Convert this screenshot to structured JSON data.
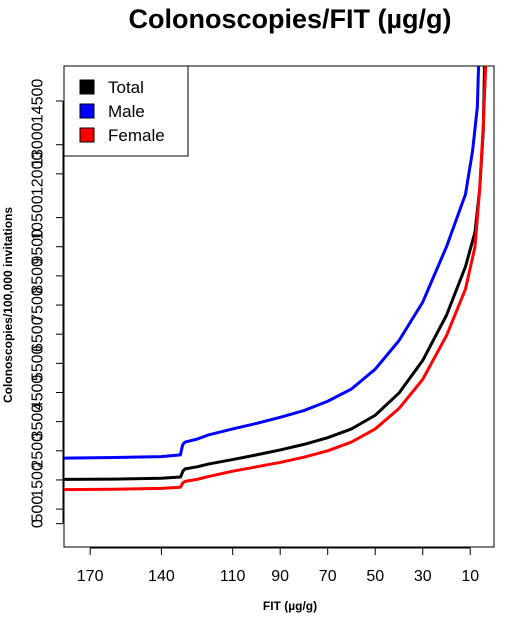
{
  "chart_data": {
    "type": "line",
    "title": "Colonoscopies/FIT (µg/g)",
    "xlabel": "FIT (µg/g)",
    "ylabel": "Colonoscopies/100,000 invitations",
    "xlim": [
      181,
      0
    ],
    "ylim": [
      -800,
      15700
    ],
    "x_ticks": [
      170,
      140,
      110,
      90,
      70,
      50,
      30,
      10
    ],
    "x_tick_labels": [
      "170",
      "140",
      "110",
      "90",
      "70",
      "50",
      "30",
      "10"
    ],
    "y_ticks": [
      0,
      500,
      1500,
      2500,
      3500,
      4500,
      5500,
      6500,
      7500,
      8500,
      9500,
      10500,
      12000,
      13000,
      14500
    ],
    "y_tick_labels": [
      "0",
      "500",
      "1500",
      "2500",
      "3500",
      "4500",
      "5500",
      "6500",
      "7500",
      "8500",
      "9500",
      "10500",
      "12000",
      "13000",
      "14500"
    ],
    "legend_position": "top-left",
    "grid": false,
    "series": [
      {
        "name": "Total",
        "color": "#000000",
        "points": [
          [
            181,
            1520
          ],
          [
            160,
            1530
          ],
          [
            140,
            1560
          ],
          [
            132,
            1600
          ],
          [
            131.5,
            1680
          ],
          [
            131,
            1800
          ],
          [
            130,
            1880
          ],
          [
            125,
            1950
          ],
          [
            120,
            2050
          ],
          [
            110,
            2200
          ],
          [
            100,
            2360
          ],
          [
            90,
            2530
          ],
          [
            80,
            2720
          ],
          [
            70,
            2950
          ],
          [
            60,
            3250
          ],
          [
            50,
            3720
          ],
          [
            40,
            4480
          ],
          [
            30,
            5600
          ],
          [
            20,
            7150
          ],
          [
            12,
            8820
          ],
          [
            8,
            10000
          ],
          [
            6,
            11500
          ],
          [
            4.5,
            13500
          ],
          [
            4,
            15700
          ]
        ]
      },
      {
        "name": "Male",
        "color": "#0000ff",
        "points": [
          [
            181,
            2250
          ],
          [
            160,
            2270
          ],
          [
            140,
            2300
          ],
          [
            132,
            2360
          ],
          [
            131.5,
            2550
          ],
          [
            131,
            2720
          ],
          [
            130,
            2800
          ],
          [
            125,
            2900
          ],
          [
            120,
            3050
          ],
          [
            110,
            3250
          ],
          [
            100,
            3440
          ],
          [
            90,
            3650
          ],
          [
            80,
            3880
          ],
          [
            70,
            4200
          ],
          [
            60,
            4620
          ],
          [
            50,
            5300
          ],
          [
            40,
            6280
          ],
          [
            30,
            7600
          ],
          [
            20,
            9500
          ],
          [
            12,
            11300
          ],
          [
            9,
            12800
          ],
          [
            7,
            14300
          ],
          [
            6.5,
            15700
          ]
        ]
      },
      {
        "name": "Female",
        "color": "#ff0000",
        "points": [
          [
            181,
            1170
          ],
          [
            160,
            1180
          ],
          [
            140,
            1210
          ],
          [
            132,
            1250
          ],
          [
            131.5,
            1320
          ],
          [
            131,
            1400
          ],
          [
            130,
            1450
          ],
          [
            125,
            1520
          ],
          [
            120,
            1620
          ],
          [
            110,
            1800
          ],
          [
            100,
            1950
          ],
          [
            90,
            2100
          ],
          [
            80,
            2280
          ],
          [
            70,
            2500
          ],
          [
            60,
            2800
          ],
          [
            50,
            3250
          ],
          [
            40,
            3950
          ],
          [
            30,
            4950
          ],
          [
            20,
            6450
          ],
          [
            12,
            8050
          ],
          [
            8,
            9500
          ],
          [
            6,
            11500
          ],
          [
            4.5,
            13700
          ],
          [
            3.5,
            15700
          ]
        ]
      }
    ]
  }
}
